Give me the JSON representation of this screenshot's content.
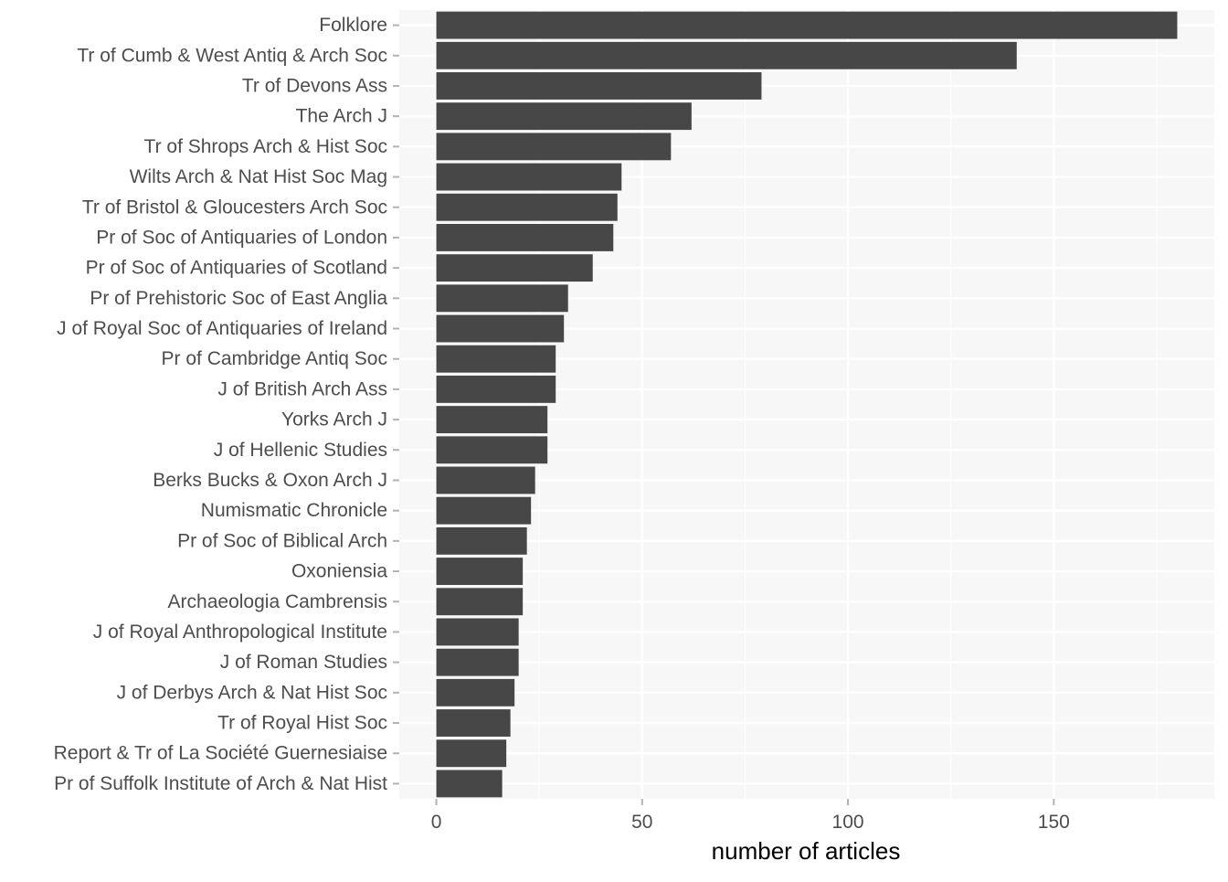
{
  "chart_data": {
    "type": "bar",
    "orientation": "horizontal",
    "categories": [
      "Folklore",
      "Tr of Cumb & West Antiq & Arch Soc",
      "Tr of Devons Ass",
      "The Arch J",
      "Tr of Shrops Arch & Hist Soc",
      "Wilts Arch & Nat Hist Soc Mag",
      "Tr of Bristol & Gloucesters Arch Soc",
      "Pr of Soc of Antiquaries of London",
      "Pr of Soc of Antiquaries of Scotland",
      "Pr of Prehistoric Soc of East Anglia",
      "J of Royal Soc of Antiquaries of Ireland",
      "Pr of Cambridge Antiq Soc",
      "J of British Arch Ass",
      "Yorks Arch J",
      "J of Hellenic Studies",
      "Berks Bucks & Oxon Arch J",
      "Numismatic Chronicle",
      "Pr of Soc of Biblical Arch",
      "Oxoniensia",
      "Archaeologia Cambrensis",
      "J of Royal Anthropological Institute",
      "J of Roman Studies",
      "J of Derbys Arch & Nat Hist Soc",
      "Tr of Royal Hist Soc",
      "Report & Tr of La Société Guernesiaise",
      "Pr of Suffolk Institute of Arch & Nat Hist"
    ],
    "values": [
      180,
      141,
      79,
      62,
      57,
      45,
      44,
      43,
      38,
      32,
      31,
      29,
      29,
      27,
      27,
      24,
      23,
      22,
      21,
      21,
      20,
      20,
      19,
      18,
      17,
      16
    ],
    "xlabel": "number of articles",
    "ylabel": "",
    "title": "",
    "xlim": [
      -9,
      189
    ],
    "xticks": [
      0,
      50,
      100,
      150
    ],
    "grid": true,
    "colors": {
      "bar": "#474747",
      "panel": "#f7f7f7",
      "grid": "#ffffff",
      "tick": "#b3b3b3"
    }
  }
}
